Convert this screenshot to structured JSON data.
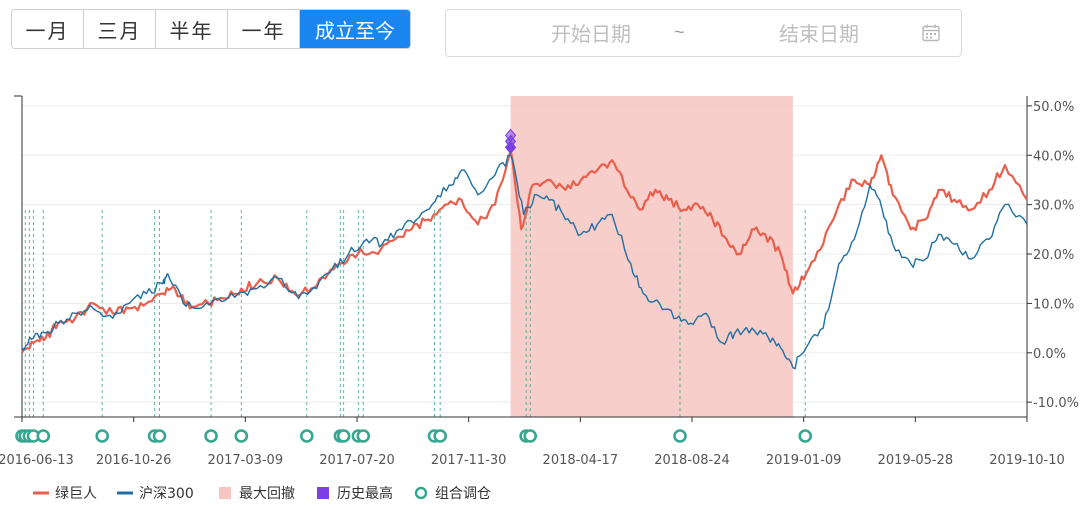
{
  "range_buttons": [
    {
      "label": "一月",
      "active": false
    },
    {
      "label": "三月",
      "active": false
    },
    {
      "label": "半年",
      "active": false
    },
    {
      "label": "一年",
      "active": false
    },
    {
      "label": "成立至今",
      "active": true
    }
  ],
  "date_range": {
    "start_placeholder": "开始日期",
    "separator": "~",
    "end_placeholder": "结束日期",
    "icon": "calendar-icon"
  },
  "colors": {
    "fund": "#e8604c",
    "index": "#1f6fa3",
    "drawdown": "#f7c6c2",
    "peak": "#7b3fe4",
    "rebalance": "#35a690"
  },
  "chart_data": {
    "type": "line",
    "y_axis": {
      "min": -0.13,
      "max": 0.52,
      "ticks": [
        "-10.0%",
        "0.0%",
        "10.0%",
        "20.0%",
        "30.0%",
        "40.0%",
        "50.0%"
      ],
      "tick_values": [
        -0.1,
        0,
        0.1,
        0.2,
        0.3,
        0.4,
        0.5
      ],
      "position": "right"
    },
    "x_axis": {
      "start": "2016-06-06",
      "end": "2019-10-17",
      "tick_labels": [
        "2016-06-13",
        "2016-10-26",
        "2017-03-09",
        "2017-07-20",
        "2017-11-30",
        "2018-04-17",
        "2018-08-24",
        "2019-01-09",
        "2019-05-28",
        "2019-10-10"
      ]
    },
    "grid": true,
    "legend_position": "bottom-left",
    "series": [
      {
        "name": "绿巨人",
        "key": "fund",
        "points": [
          [
            "2016-06-06",
            0.0
          ],
          [
            "2016-06-20",
            0.02
          ],
          [
            "2016-07-05",
            0.03
          ],
          [
            "2016-07-20",
            0.06
          ],
          [
            "2016-08-10",
            0.07
          ],
          [
            "2016-09-01",
            0.1
          ],
          [
            "2016-09-25",
            0.08
          ],
          [
            "2016-10-15",
            0.09
          ],
          [
            "2016-11-05",
            0.1
          ],
          [
            "2016-11-25",
            0.12
          ],
          [
            "2016-12-10",
            0.13
          ],
          [
            "2016-12-28",
            0.09
          ],
          [
            "2017-01-20",
            0.1
          ],
          [
            "2017-02-10",
            0.11
          ],
          [
            "2017-03-01",
            0.13
          ],
          [
            "2017-03-20",
            0.14
          ],
          [
            "2017-04-15",
            0.15
          ],
          [
            "2017-05-05",
            0.12
          ],
          [
            "2017-05-25",
            0.13
          ],
          [
            "2017-06-15",
            0.16
          ],
          [
            "2017-07-05",
            0.18
          ],
          [
            "2017-07-25",
            0.21
          ],
          [
            "2017-08-15",
            0.2
          ],
          [
            "2017-09-05",
            0.23
          ],
          [
            "2017-09-25",
            0.25
          ],
          [
            "2017-10-15",
            0.27
          ],
          [
            "2017-11-05",
            0.3
          ],
          [
            "2017-11-25",
            0.31
          ],
          [
            "2017-12-15",
            0.26
          ],
          [
            "2018-01-05",
            0.3
          ],
          [
            "2018-01-24",
            0.41
          ],
          [
            "2018-02-06",
            0.25
          ],
          [
            "2018-02-20",
            0.34
          ],
          [
            "2018-03-10",
            0.35
          ],
          [
            "2018-04-01",
            0.33
          ],
          [
            "2018-04-20",
            0.35
          ],
          [
            "2018-05-10",
            0.37
          ],
          [
            "2018-05-28",
            0.39
          ],
          [
            "2018-06-15",
            0.33
          ],
          [
            "2018-07-01",
            0.29
          ],
          [
            "2018-07-20",
            0.33
          ],
          [
            "2018-08-05",
            0.31
          ],
          [
            "2018-08-24",
            0.29
          ],
          [
            "2018-09-10",
            0.3
          ],
          [
            "2018-09-28",
            0.27
          ],
          [
            "2018-10-15",
            0.23
          ],
          [
            "2018-10-30",
            0.2
          ],
          [
            "2018-11-15",
            0.25
          ],
          [
            "2018-12-01",
            0.24
          ],
          [
            "2018-12-20",
            0.2
          ],
          [
            "2019-01-04",
            0.12
          ],
          [
            "2019-01-20",
            0.16
          ],
          [
            "2019-02-10",
            0.22
          ],
          [
            "2019-03-01",
            0.3
          ],
          [
            "2019-03-20",
            0.35
          ],
          [
            "2019-04-08",
            0.34
          ],
          [
            "2019-04-22",
            0.4
          ],
          [
            "2019-05-06",
            0.32
          ],
          [
            "2019-05-28",
            0.25
          ],
          [
            "2019-06-15",
            0.27
          ],
          [
            "2019-07-01",
            0.33
          ],
          [
            "2019-07-20",
            0.31
          ],
          [
            "2019-08-10",
            0.29
          ],
          [
            "2019-09-01",
            0.33
          ],
          [
            "2019-09-20",
            0.38
          ],
          [
            "2019-10-17",
            0.31
          ]
        ]
      },
      {
        "name": "沪深300",
        "key": "index",
        "points": [
          [
            "2016-06-06",
            0.01
          ],
          [
            "2016-06-20",
            0.03
          ],
          [
            "2016-07-05",
            0.04
          ],
          [
            "2016-07-20",
            0.06
          ],
          [
            "2016-08-10",
            0.08
          ],
          [
            "2016-09-01",
            0.09
          ],
          [
            "2016-09-25",
            0.07
          ],
          [
            "2016-10-15",
            0.1
          ],
          [
            "2016-11-05",
            0.12
          ],
          [
            "2016-11-25",
            0.14
          ],
          [
            "2016-12-01",
            0.16
          ],
          [
            "2016-12-20",
            0.1
          ],
          [
            "2017-01-10",
            0.09
          ],
          [
            "2017-02-01",
            0.11
          ],
          [
            "2017-02-25",
            0.12
          ],
          [
            "2017-03-20",
            0.13
          ],
          [
            "2017-04-15",
            0.15
          ],
          [
            "2017-05-10",
            0.11
          ],
          [
            "2017-06-01",
            0.13
          ],
          [
            "2017-06-20",
            0.17
          ],
          [
            "2017-07-10",
            0.2
          ],
          [
            "2017-08-01",
            0.23
          ],
          [
            "2017-08-20",
            0.22
          ],
          [
            "2017-09-10",
            0.25
          ],
          [
            "2017-10-01",
            0.27
          ],
          [
            "2017-10-20",
            0.3
          ],
          [
            "2017-11-10",
            0.34
          ],
          [
            "2017-11-25",
            0.37
          ],
          [
            "2017-12-15",
            0.32
          ],
          [
            "2018-01-05",
            0.36
          ],
          [
            "2018-01-24",
            0.4
          ],
          [
            "2018-02-09",
            0.28
          ],
          [
            "2018-02-25",
            0.32
          ],
          [
            "2018-03-15",
            0.31
          ],
          [
            "2018-04-01",
            0.27
          ],
          [
            "2018-04-20",
            0.24
          ],
          [
            "2018-05-10",
            0.26
          ],
          [
            "2018-05-28",
            0.28
          ],
          [
            "2018-06-20",
            0.18
          ],
          [
            "2018-07-05",
            0.12
          ],
          [
            "2018-07-25",
            0.1
          ],
          [
            "2018-08-15",
            0.07
          ],
          [
            "2018-09-01",
            0.06
          ],
          [
            "2018-09-20",
            0.08
          ],
          [
            "2018-10-10",
            0.02
          ],
          [
            "2018-10-25",
            0.04
          ],
          [
            "2018-11-15",
            0.05
          ],
          [
            "2018-12-05",
            0.03
          ],
          [
            "2018-12-20",
            0.01
          ],
          [
            "2019-01-04",
            -0.03
          ],
          [
            "2019-01-20",
            0.01
          ],
          [
            "2019-02-10",
            0.05
          ],
          [
            "2019-03-01",
            0.18
          ],
          [
            "2019-03-20",
            0.23
          ],
          [
            "2019-04-08",
            0.34
          ],
          [
            "2019-04-20",
            0.31
          ],
          [
            "2019-05-06",
            0.22
          ],
          [
            "2019-05-28",
            0.18
          ],
          [
            "2019-06-15",
            0.19
          ],
          [
            "2019-07-01",
            0.24
          ],
          [
            "2019-07-20",
            0.22
          ],
          [
            "2019-08-10",
            0.19
          ],
          [
            "2019-09-01",
            0.23
          ],
          [
            "2019-09-20",
            0.3
          ],
          [
            "2019-10-17",
            0.26
          ]
        ]
      }
    ],
    "max_drawdown": {
      "start": "2018-01-24",
      "end": "2019-01-04"
    },
    "historical_high": {
      "date": "2018-01-24",
      "value": 0.42
    },
    "rebalance_dates": [
      "2016-06-06",
      "2016-06-10",
      "2016-06-15",
      "2016-06-20",
      "2016-07-02",
      "2016-09-12",
      "2016-11-15",
      "2016-11-21",
      "2017-01-23",
      "2017-03-01",
      "2017-05-20",
      "2017-06-30",
      "2017-07-04",
      "2017-07-22",
      "2017-07-28",
      "2017-10-23",
      "2017-10-30",
      "2018-02-12",
      "2018-02-17",
      "2018-08-19",
      "2019-01-19"
    ],
    "legend": [
      {
        "label": "绿巨人",
        "kind": "line",
        "color_key": "fund"
      },
      {
        "label": "沪深300",
        "kind": "line",
        "color_key": "index"
      },
      {
        "label": "最大回撤",
        "kind": "box",
        "color_key": "drawdown"
      },
      {
        "label": "历史最高",
        "kind": "square",
        "color_key": "peak"
      },
      {
        "label": "组合调仓",
        "kind": "circle",
        "color_key": "rebalance"
      }
    ]
  }
}
